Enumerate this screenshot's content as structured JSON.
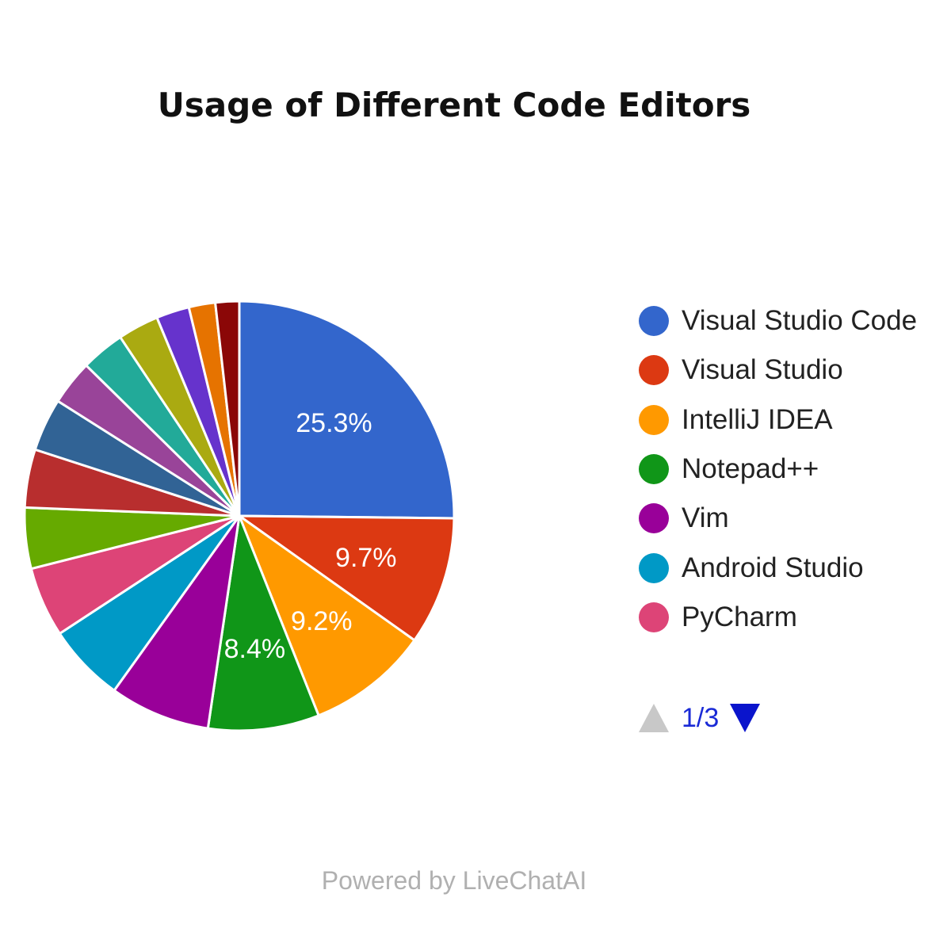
{
  "chart_data": {
    "type": "pie",
    "title": "Usage of Different Code Editors",
    "slices": [
      {
        "label": "Visual Studio Code",
        "value": 25.3,
        "color": "#3366cc",
        "data_label": "25.3%"
      },
      {
        "label": "Visual Studio",
        "value": 9.7,
        "color": "#dc3912",
        "data_label": "9.7%"
      },
      {
        "label": "IntelliJ IDEA",
        "value": 9.2,
        "color": "#ff9900",
        "data_label": "9.2%"
      },
      {
        "label": "Notepad++",
        "value": 8.4,
        "color": "#109618",
        "data_label": "8.4%"
      },
      {
        "label": "Vim",
        "value": 7.6,
        "color": "#990099",
        "data_label": ""
      },
      {
        "label": "Android Studio",
        "value": 5.9,
        "color": "#0099c6",
        "data_label": ""
      },
      {
        "label": "PyCharm",
        "value": 5.3,
        "color": "#dd4477",
        "data_label": ""
      },
      {
        "value": 4.6,
        "color": "#66aa00",
        "data_label": ""
      },
      {
        "value": 4.4,
        "color": "#b82e2e",
        "data_label": ""
      },
      {
        "value": 4.0,
        "color": "#316395",
        "data_label": ""
      },
      {
        "value": 3.4,
        "color": "#994499",
        "data_label": ""
      },
      {
        "value": 3.3,
        "color": "#22aa99",
        "data_label": ""
      },
      {
        "value": 3.1,
        "color": "#aaaa11",
        "data_label": ""
      },
      {
        "value": 2.5,
        "color": "#6633cc",
        "data_label": ""
      },
      {
        "value": 2.0,
        "color": "#e67300",
        "data_label": ""
      },
      {
        "value": 1.8,
        "color": "#8b0707",
        "data_label": ""
      }
    ],
    "legend_position": "right"
  },
  "legend": {
    "items": [
      {
        "label": "Visual Studio Code",
        "color": "#3366cc"
      },
      {
        "label": "Visual Studio",
        "color": "#dc3912"
      },
      {
        "label": "IntelliJ IDEA",
        "color": "#ff9900"
      },
      {
        "label": "Notepad++",
        "color": "#109618"
      },
      {
        "label": "Vim",
        "color": "#990099"
      },
      {
        "label": "Android Studio",
        "color": "#0099c6"
      },
      {
        "label": "PyCharm",
        "color": "#dd4477"
      }
    ],
    "page_indicator": "1/3"
  },
  "footer": {
    "text": "Powered by LiveChatAI"
  }
}
